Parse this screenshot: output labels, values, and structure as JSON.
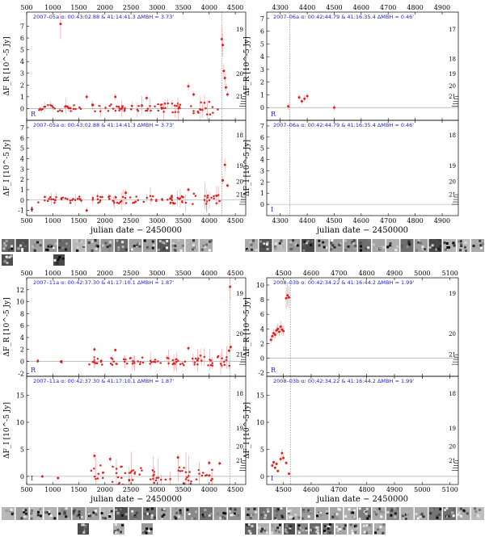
{
  "figure": {
    "xlabel": "julian date − 2450000",
    "colors": {
      "points": "#e02020",
      "errors": "#f08080",
      "annotation": "#2222cc",
      "zero_line": "#999999"
    }
  },
  "chart_data": [
    {
      "id": "p1R",
      "type": "scatter",
      "band": "R",
      "annotation": "2007–05a   α: 00:43:02.88  & 41:14:41.3   ΔMBH = 3.73'",
      "ylabel": "ΔF_R [10^-5 Jy]",
      "xlim": [
        500,
        4700
      ],
      "ylim": [
        -1.0,
        8.2
      ],
      "xticks": [
        500,
        1000,
        1500,
        2000,
        2500,
        3000,
        3500,
        4000,
        4500
      ],
      "top_ticks": true,
      "bottom_ticks": false,
      "yticks": [
        0,
        1,
        2,
        3,
        4,
        5,
        6,
        7
      ],
      "mag_ticks": [
        19,
        20,
        21
      ],
      "vlines": [
        4240
      ],
      "segments": [
        [
          700,
          1550,
          0.35
        ],
        [
          1750,
          2650,
          0.4
        ],
        [
          2700,
          3600,
          0.5
        ],
        [
          3650,
          4200,
          0.7
        ]
      ],
      "points": [
        [
          1150,
          7.2
        ],
        [
          4240,
          5.9
        ],
        [
          4260,
          5.4
        ],
        [
          4280,
          3.2
        ],
        [
          4300,
          2.6
        ],
        [
          4320,
          1.8
        ],
        [
          4350,
          1.2
        ],
        [
          3600,
          1.9
        ],
        [
          3700,
          1.2
        ],
        [
          2200,
          1.0
        ],
        [
          1650,
          1.0
        ],
        [
          2800,
          0.9
        ]
      ]
    },
    {
      "id": "p1I",
      "type": "scatter",
      "band": "I",
      "annotation": "2007–05a   α: 00:43:02.88  & 41:14:41.3   ΔMBH = 3.73'",
      "ylabel": "ΔF_I [10^-5 Jy]",
      "xlim": [
        500,
        4700
      ],
      "ylim": [
        -1.5,
        7.7
      ],
      "xticks": [
        500,
        1000,
        1500,
        2000,
        2500,
        3000,
        3500,
        4000,
        4500
      ],
      "top_ticks": false,
      "bottom_ticks": true,
      "yticks": [
        -1,
        0,
        1,
        2,
        3,
        4,
        5,
        6,
        7
      ],
      "mag_ticks": [
        18,
        19,
        20,
        21
      ],
      "vlines": [
        4240
      ],
      "segments": [
        [
          700,
          1550,
          0.4
        ],
        [
          1750,
          2650,
          0.45
        ],
        [
          2700,
          3600,
          0.5
        ],
        [
          3650,
          4200,
          0.7
        ]
      ],
      "points": [
        [
          4300,
          3.4
        ],
        [
          4260,
          1.9
        ],
        [
          4350,
          1.4
        ],
        [
          3600,
          1.0
        ],
        [
          2400,
          0.7
        ],
        [
          600,
          -0.9
        ],
        [
          1650,
          -1.0
        ]
      ]
    },
    {
      "id": "p2R",
      "type": "scatter",
      "band": "R",
      "annotation": "2007–06a   α: 00:42:44.79  & 41:16:35.4   ΔMBH = 0.46'",
      "ylabel": "ΔF_R [10^-5 Jy]",
      "xlim": [
        4250,
        4960
      ],
      "ylim": [
        -1.0,
        7.5
      ],
      "xticks": [
        4300,
        4400,
        4500,
        4600,
        4700,
        4800,
        4900
      ],
      "top_ticks": true,
      "bottom_ticks": false,
      "yticks": [
        0,
        1,
        2,
        3,
        4,
        5,
        6,
        7
      ],
      "mag_ticks": [
        17,
        18,
        19,
        20,
        21
      ],
      "vlines": [
        4335
      ],
      "segments": [],
      "points": [
        [
          4330,
          0.1
        ],
        [
          4370,
          0.8
        ],
        [
          4380,
          0.5
        ],
        [
          4400,
          0.9
        ],
        [
          4390,
          0.7
        ],
        [
          4500,
          0.0
        ]
      ]
    },
    {
      "id": "p2I",
      "type": "scatter",
      "band": "I",
      "annotation": "2007–06a   α: 00:42:44.79  & 41:16:35.4   ΔMBH = 0.46'",
      "ylabel": "ΔF_I [10^-5 Jy]",
      "xlim": [
        4250,
        4960
      ],
      "ylim": [
        -1.0,
        7.5
      ],
      "xticks": [
        4300,
        4400,
        4500,
        4600,
        4700,
        4800,
        4900
      ],
      "top_ticks": false,
      "bottom_ticks": true,
      "yticks": [
        0,
        1,
        2,
        3,
        4,
        5,
        6,
        7
      ],
      "mag_ticks": [
        18,
        19,
        20,
        21
      ],
      "vlines": [
        4335
      ],
      "segments": [],
      "points": []
    },
    {
      "id": "p3R",
      "type": "scatter",
      "band": "R",
      "annotation": "2007–11a   α: 00:42:37.30  & 41:17:10.1   ΔMBH = 1.87'",
      "ylabel": "ΔF_R [10^-5 Jy]",
      "xlim": [
        500,
        4700
      ],
      "ylim": [
        -2.5,
        14.0
      ],
      "xticks": [
        500,
        1000,
        1500,
        2000,
        2500,
        3000,
        3500,
        4000,
        4500
      ],
      "top_ticks": true,
      "bottom_ticks": false,
      "yticks": [
        -2,
        0,
        2,
        4,
        6,
        8,
        10,
        12
      ],
      "mag_ticks": [
        19,
        20,
        21
      ],
      "vlines": [
        4400
      ],
      "segments": [
        [
          700,
          720,
          0.2
        ],
        [
          1150,
          1170,
          -0.2
        ],
        [
          1700,
          2300,
          0.9
        ],
        [
          2350,
          3100,
          0.8
        ],
        [
          3150,
          3600,
          0.9
        ],
        [
          3650,
          4450,
          1.1
        ]
      ],
      "points": [
        [
          4400,
          12.5
        ],
        [
          4410,
          2.4
        ],
        [
          4380,
          1.8
        ],
        [
          3600,
          2.2
        ],
        [
          2200,
          1.9
        ],
        [
          1800,
          2.0
        ]
      ]
    },
    {
      "id": "p3I",
      "type": "scatter",
      "band": "I",
      "annotation": "2007–11a   α: 00:42:37.30  & 41:17:10.1   ΔMBH = 1.87'",
      "ylabel": "ΔF_I [10^-5 Jy]",
      "xlim": [
        500,
        4700
      ],
      "ylim": [
        -1.5,
        18.5
      ],
      "xticks": [
        500,
        1000,
        1500,
        2000,
        2500,
        3000,
        3500,
        4000,
        4500
      ],
      "top_ticks": false,
      "bottom_ticks": true,
      "yticks": [
        0,
        5,
        10,
        15
      ],
      "mag_ticks": [
        18,
        19,
        20,
        21
      ],
      "vlines": [
        4400
      ],
      "segments": [
        [
          1700,
          2000,
          2.5
        ],
        [
          2050,
          2400,
          2.5
        ],
        [
          2450,
          2800,
          2.0
        ],
        [
          2850,
          3200,
          2.2
        ],
        [
          3250,
          3700,
          2.0
        ],
        [
          3750,
          4100,
          1.5
        ]
      ],
      "points": [
        [
          1800,
          3.8
        ],
        [
          2100,
          3.2
        ],
        [
          3400,
          3.5
        ],
        [
          4000,
          2.5
        ],
        [
          4200,
          2.4
        ],
        [
          1100,
          -0.3
        ],
        [
          800,
          0.0
        ]
      ]
    },
    {
      "id": "p4R",
      "type": "scatter",
      "band": "R",
      "annotation": "2008–03b   α: 00:42:34.22  & 41:16:44.2   ΔMBH = 1.99'",
      "ylabel": "ΔF_R [10^-5 Jy]",
      "xlim": [
        4440,
        5130
      ],
      "ylim": [
        -2.5,
        11.0
      ],
      "xticks": [
        4500,
        4600,
        4700,
        4800,
        4900,
        5000,
        5100
      ],
      "top_ticks": true,
      "bottom_ticks": false,
      "yticks": [
        -2,
        0,
        2,
        4,
        6,
        8,
        10
      ],
      "mag_ticks": [
        19,
        20,
        21
      ],
      "vlines": [
        4525
      ],
      "segments": [],
      "points": [
        [
          4455,
          2.5
        ],
        [
          4460,
          3.0
        ],
        [
          4465,
          3.4
        ],
        [
          4470,
          3.2
        ],
        [
          4475,
          3.8
        ],
        [
          4480,
          4.0
        ],
        [
          4485,
          3.6
        ],
        [
          4490,
          4.3
        ],
        [
          4495,
          3.9
        ],
        [
          4500,
          3.7
        ],
        [
          4510,
          8.2
        ],
        [
          4515,
          8.6
        ],
        [
          4520,
          8.3
        ]
      ]
    },
    {
      "id": "p4I",
      "type": "scatter",
      "band": "I",
      "annotation": "2008–03b   α: 00:42:34.22  & 41:16:44.2   ΔMBH = 1.99'",
      "ylabel": "ΔF_I [10^-5 Jy]",
      "xlim": [
        4440,
        5130
      ],
      "ylim": [
        -1.5,
        18.5
      ],
      "xticks": [
        4500,
        4600,
        4700,
        4800,
        4900,
        5000,
        5100
      ],
      "top_ticks": false,
      "bottom_ticks": true,
      "yticks": [
        0,
        5,
        10,
        15
      ],
      "mag_ticks": [
        18,
        19,
        20,
        21
      ],
      "vlines": [
        4525
      ],
      "segments": [],
      "points": [
        [
          4460,
          2.0
        ],
        [
          4465,
          2.6
        ],
        [
          4470,
          1.6
        ],
        [
          4475,
          2.3
        ],
        [
          4480,
          1.0
        ],
        [
          4490,
          3.2
        ],
        [
          4495,
          4.3
        ],
        [
          4500,
          3.4
        ],
        [
          4510,
          2.5
        ],
        [
          4520,
          0.5
        ]
      ]
    }
  ]
}
